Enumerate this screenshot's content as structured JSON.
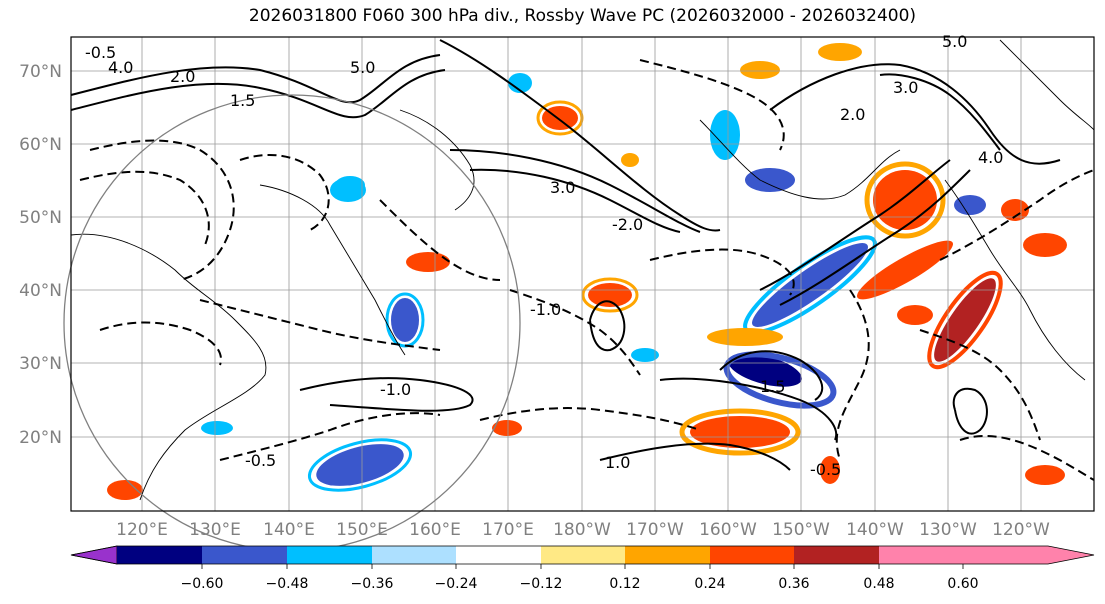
{
  "title": "2026031800 F060 300 hPa div., Rossby Wave PC (2026032000 - 2026032400)",
  "map": {
    "lat_labels": [
      "70°N",
      "60°N",
      "50°N",
      "40°N",
      "30°N",
      "20°N"
    ],
    "lon_labels": [
      "120°E",
      "130°E",
      "140°E",
      "150°E",
      "160°E",
      "170°E",
      "180°W",
      "170°W",
      "160°W",
      "150°W",
      "140°W",
      "130°W",
      "120°W"
    ],
    "contour_labels": [
      {
        "text": "-0.5"
      },
      {
        "text": "4.0"
      },
      {
        "text": "5.0"
      },
      {
        "text": "2.0"
      },
      {
        "text": "1.5"
      },
      {
        "text": "3.0"
      },
      {
        "text": "-2.0"
      },
      {
        "text": "-1.0"
      },
      {
        "text": "-0.5"
      },
      {
        "text": "1.0"
      },
      {
        "text": "2.0"
      },
      {
        "text": "5.0"
      },
      {
        "text": "4.0"
      },
      {
        "text": "-0.5"
      },
      {
        "text": "1.5"
      },
      {
        "text": "-1.0"
      },
      {
        "text": "3.0"
      }
    ]
  },
  "colorbar": {
    "colors": [
      "#9932CC",
      "#000080",
      "#3A57CC",
      "#00BFFF",
      "#ADE0FF",
      "#FFFFFF",
      "#FFE985",
      "#FFA500",
      "#FF4500",
      "#B22222",
      "#FF82AB"
    ],
    "tick_labels": [
      "−0.60",
      "−0.48",
      "−0.36",
      "−0.24",
      "−0.12",
      "0.12",
      "0.24",
      "0.36",
      "0.48",
      "0.60"
    ]
  }
}
